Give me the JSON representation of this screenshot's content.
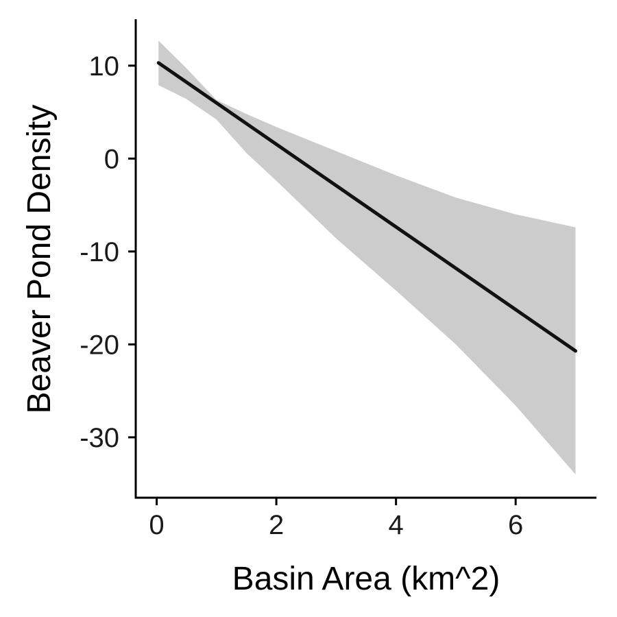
{
  "chart_data": {
    "type": "line",
    "title": "",
    "xlabel": "Basin Area (km^2)",
    "ylabel": "Beaver Pond Density",
    "xlim": [
      -0.35,
      7.35
    ],
    "ylim": [
      -36.5,
      15.0
    ],
    "x_ticks": [
      0,
      2,
      4,
      6
    ],
    "y_ticks": [
      10,
      0,
      -10,
      -20,
      -30
    ],
    "x_tick_labels": [
      "0",
      "2",
      "4",
      "6"
    ],
    "y_tick_labels": [
      "10",
      "0",
      "-10",
      "-20",
      "-30"
    ],
    "grid": false,
    "legend": "none",
    "series": [
      {
        "line": {
          "x": [
            0.03,
            7.0
          ],
          "y": [
            10.3,
            -20.7
          ]
        },
        "confidence_band": {
          "x": [
            0.03,
            0.5,
            1.0,
            1.5,
            2.0,
            3.0,
            4.0,
            5.0,
            6.0,
            7.0
          ],
          "upper": [
            12.7,
            9.7,
            6.3,
            4.8,
            3.4,
            0.8,
            -1.8,
            -4.2,
            -6.0,
            -7.4
          ],
          "lower": [
            7.9,
            6.4,
            4.2,
            0.6,
            -2.4,
            -8.6,
            -14.2,
            -20.0,
            -26.6,
            -34.0
          ]
        }
      }
    ],
    "colors": {
      "line": "#111111",
      "band": "#cccccc",
      "axis": "#000000"
    }
  }
}
